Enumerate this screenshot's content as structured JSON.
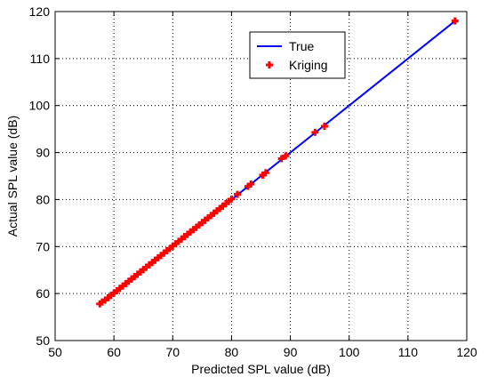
{
  "chart_data": {
    "type": "line",
    "title": "",
    "xlabel": "Predicted SPL value (dB)",
    "ylabel": "Actual SPL value (dB)",
    "xlim": [
      50,
      120
    ],
    "ylim": [
      50,
      120
    ],
    "xticks": [
      50,
      60,
      70,
      80,
      90,
      100,
      110,
      120
    ],
    "yticks": [
      50,
      60,
      70,
      80,
      90,
      100,
      110,
      120
    ],
    "grid": true,
    "legend_position": "top-right",
    "series": [
      {
        "name": "True",
        "kind": "line",
        "color": "#0000ff",
        "x": [
          57.5,
          118
        ],
        "y": [
          57.5,
          118
        ]
      },
      {
        "name": "Kriging",
        "kind": "marker",
        "marker": "plus",
        "color": "#ff0000",
        "x": [
          57.6,
          58.0,
          58.5,
          59.0,
          59.5,
          60.0,
          60.5,
          61.0,
          61.5,
          62.0,
          62.5,
          63.0,
          63.5,
          64.0,
          64.5,
          65.0,
          65.5,
          66.0,
          66.5,
          67.0,
          67.5,
          68.0,
          68.5,
          69.0,
          69.5,
          70.0,
          70.5,
          71.0,
          71.5,
          72.0,
          72.5,
          73.0,
          73.5,
          74.0,
          74.5,
          75.0,
          75.5,
          76.0,
          76.5,
          77.0,
          77.5,
          78.0,
          78.5,
          79.0,
          79.5,
          80.0,
          81.0,
          82.8,
          83.3,
          85.3,
          85.8,
          88.5,
          89.2,
          94.2,
          95.8,
          118.0
        ],
        "y": [
          57.8,
          58.2,
          58.6,
          59.1,
          59.6,
          60.1,
          60.6,
          61.1,
          61.6,
          62.1,
          62.6,
          63.1,
          63.6,
          64.1,
          64.6,
          65.1,
          65.6,
          66.1,
          66.6,
          67.1,
          67.6,
          68.1,
          68.6,
          69.1,
          69.6,
          70.1,
          70.6,
          71.1,
          71.6,
          72.1,
          72.6,
          73.1,
          73.6,
          74.1,
          74.6,
          75.1,
          75.6,
          76.1,
          76.6,
          77.1,
          77.6,
          78.1,
          78.6,
          79.1,
          79.6,
          80.1,
          81.1,
          82.8,
          83.3,
          85.2,
          85.7,
          88.7,
          89.3,
          94.3,
          95.6,
          118.0
        ]
      }
    ]
  }
}
